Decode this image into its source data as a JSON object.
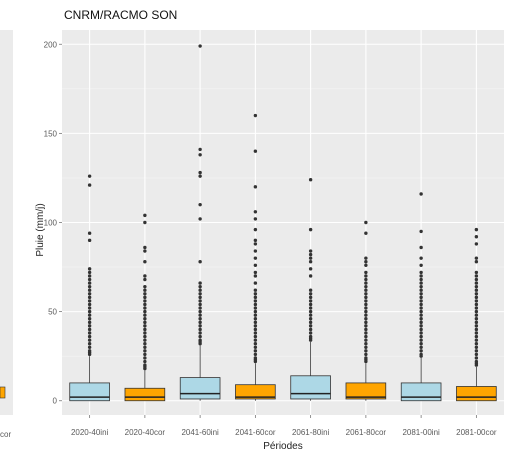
{
  "chart_data": {
    "type": "boxplot",
    "title": "CNRM/RACMO SON",
    "xlabel": "Périodes",
    "ylabel": "Pluie (mm/j)",
    "ylim": [
      -8,
      208
    ],
    "yticks": [
      0,
      50,
      100,
      150,
      200
    ],
    "categories": [
      "2020-40ini",
      "2020-40cor",
      "2041-60ini",
      "2041-60cor",
      "2061-80ini",
      "2061-80cor",
      "2081-00ini",
      "2081-00cor"
    ],
    "colors": {
      "ini": "#ADD8E6",
      "cor": "#FFA500",
      "panel_background": "#EBEBEB",
      "grid": "#FFFFFF",
      "outlier": "#333333"
    },
    "boxes": [
      {
        "category": "2020-40ini",
        "group": "ini",
        "q1": 0,
        "median": 2,
        "q3": 10,
        "whisker_low": 0,
        "whisker_high": 25,
        "outliers": [
          126,
          121,
          94,
          90,
          74,
          72,
          70,
          68,
          66,
          64,
          62,
          60,
          58,
          56,
          54,
          52,
          50,
          48,
          46,
          44,
          42,
          40,
          38,
          36,
          34,
          32,
          30,
          28,
          27,
          26
        ]
      },
      {
        "category": "2020-40cor",
        "group": "cor",
        "q1": 0,
        "median": 2,
        "q3": 7,
        "whisker_low": 0,
        "whisker_high": 17,
        "outliers": [
          104,
          100,
          86,
          84,
          78,
          70,
          68,
          64,
          62,
          60,
          58,
          56,
          54,
          52,
          50,
          48,
          46,
          44,
          42,
          40,
          38,
          36,
          34,
          32,
          30,
          28,
          26,
          24,
          22,
          20,
          19,
          18
        ]
      },
      {
        "category": "2041-60ini",
        "group": "ini",
        "q1": 1,
        "median": 4,
        "q3": 13,
        "whisker_low": 0,
        "whisker_high": 31,
        "outliers": [
          199,
          141,
          138,
          128,
          126,
          110,
          102,
          78,
          66,
          64,
          62,
          60,
          58,
          56,
          54,
          52,
          50,
          48,
          46,
          44,
          42,
          40,
          38,
          36,
          34,
          33,
          32
        ]
      },
      {
        "category": "2041-60cor",
        "group": "cor",
        "q1": 1,
        "median": 2,
        "q3": 9,
        "whisker_low": 0,
        "whisker_high": 21,
        "outliers": [
          160,
          140,
          120,
          106,
          102,
          96,
          90,
          88,
          84,
          80,
          76,
          72,
          70,
          66,
          62,
          60,
          58,
          56,
          54,
          52,
          50,
          48,
          46,
          44,
          42,
          40,
          38,
          36,
          34,
          32,
          30,
          28,
          26,
          24,
          23,
          22
        ]
      },
      {
        "category": "2061-80ini",
        "group": "ini",
        "q1": 1,
        "median": 4,
        "q3": 14,
        "whisker_low": 0,
        "whisker_high": 33,
        "outliers": [
          124,
          96,
          84,
          82,
          80,
          78,
          74,
          70,
          62,
          60,
          58,
          56,
          54,
          52,
          50,
          48,
          46,
          44,
          42,
          40,
          38,
          36,
          35,
          34
        ]
      },
      {
        "category": "2061-80cor",
        "group": "cor",
        "q1": 1,
        "median": 2,
        "q3": 10,
        "whisker_low": 0,
        "whisker_high": 21,
        "outliers": [
          100,
          94,
          80,
          78,
          76,
          72,
          70,
          68,
          66,
          64,
          62,
          60,
          58,
          56,
          54,
          52,
          50,
          48,
          46,
          44,
          42,
          40,
          38,
          36,
          34,
          32,
          30,
          28,
          26,
          24,
          23,
          22
        ]
      },
      {
        "category": "2081-00ini",
        "group": "ini",
        "q1": 0,
        "median": 2,
        "q3": 10,
        "whisker_low": 0,
        "whisker_high": 24,
        "outliers": [
          116,
          95,
          86,
          80,
          76,
          72,
          70,
          68,
          66,
          64,
          62,
          60,
          58,
          56,
          54,
          52,
          50,
          48,
          46,
          44,
          42,
          40,
          38,
          36,
          34,
          32,
          30,
          28,
          26,
          25
        ]
      },
      {
        "category": "2081-00cor",
        "group": "cor",
        "q1": 0,
        "median": 2,
        "q3": 8,
        "whisker_low": 0,
        "whisker_high": 19,
        "outliers": [
          96,
          92,
          88,
          80,
          78,
          72,
          70,
          68,
          66,
          64,
          62,
          60,
          58,
          56,
          54,
          52,
          50,
          48,
          46,
          44,
          42,
          40,
          38,
          36,
          34,
          32,
          30,
          28,
          26,
          24,
          22,
          21,
          20
        ]
      }
    ],
    "left_partial_panel": {
      "last_tick_label": "cor",
      "last_box": {
        "group": "cor",
        "q1": 1,
        "median": 3,
        "q3": 7
      }
    }
  }
}
